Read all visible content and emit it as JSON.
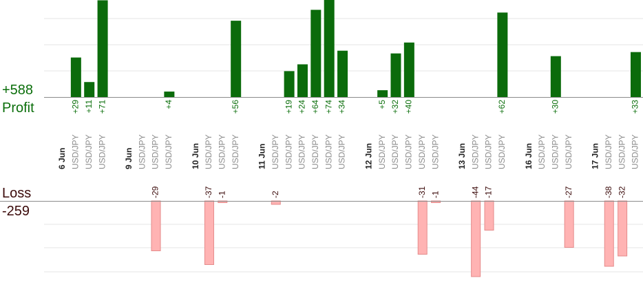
{
  "summary": {
    "profit_total": "+588",
    "profit_label": "Profit",
    "loss_label": "Loss",
    "loss_total": "-259"
  },
  "colors": {
    "profit_bar": "#0b6b0b",
    "profit_text": "#0a6e0a",
    "loss_bar": "#ffb3b3",
    "loss_bar_edge": "#e58a8a",
    "loss_text": "#3b0a0a",
    "grid": "#e6e6e6",
    "axis": "#8a8a8a",
    "date_text": "#222222",
    "symbol_text": "#8c8c8c"
  },
  "chart_data": {
    "type": "bar",
    "profit_ylim": [
      0,
      75
    ],
    "loss_ylim": [
      0,
      45
    ],
    "slots": [
      {
        "kind": "date",
        "text": "6 Jun"
      },
      {
        "kind": "trade",
        "symbol": "USD/JPY",
        "value": 29
      },
      {
        "kind": "trade",
        "symbol": "USD/JPY",
        "value": 11
      },
      {
        "kind": "trade",
        "symbol": "USD/JPY",
        "value": 71
      },
      {
        "kind": "gap"
      },
      {
        "kind": "date",
        "text": "9 Jun"
      },
      {
        "kind": "trade",
        "symbol": "USD/JPY",
        "value": null
      },
      {
        "kind": "trade",
        "symbol": "USD/JPY",
        "value": -29
      },
      {
        "kind": "trade",
        "symbol": "USD/JPY",
        "value": 4
      },
      {
        "kind": "gap"
      },
      {
        "kind": "date",
        "text": "10 Jun"
      },
      {
        "kind": "trade",
        "symbol": "USD/JPY",
        "value": -37
      },
      {
        "kind": "trade",
        "symbol": "USD/JPY",
        "value": -1
      },
      {
        "kind": "trade",
        "symbol": "USD/JPY",
        "value": 56
      },
      {
        "kind": "gap"
      },
      {
        "kind": "date",
        "text": "11 Jun"
      },
      {
        "kind": "trade",
        "symbol": "USD/JPY",
        "value": -2
      },
      {
        "kind": "trade",
        "symbol": "USD/JPY",
        "value": 19
      },
      {
        "kind": "trade",
        "symbol": "USD/JPY",
        "value": 24
      },
      {
        "kind": "trade",
        "symbol": "USD/JPY",
        "value": 64
      },
      {
        "kind": "trade",
        "symbol": "USD/JPY",
        "value": 74
      },
      {
        "kind": "trade",
        "symbol": "USD/JPY",
        "value": 34
      },
      {
        "kind": "gap"
      },
      {
        "kind": "date",
        "text": "12 Jun"
      },
      {
        "kind": "trade",
        "symbol": "USD/JPY",
        "value": 5
      },
      {
        "kind": "trade",
        "symbol": "USD/JPY",
        "value": 32
      },
      {
        "kind": "trade",
        "symbol": "USD/JPY",
        "value": 40
      },
      {
        "kind": "trade",
        "symbol": "USD/JPY",
        "value": -31
      },
      {
        "kind": "trade",
        "symbol": "USD/JPY",
        "value": -1
      },
      {
        "kind": "gap"
      },
      {
        "kind": "date",
        "text": "13 Jun"
      },
      {
        "kind": "trade",
        "symbol": "USD/JPY",
        "value": -44
      },
      {
        "kind": "trade",
        "symbol": "USD/JPY",
        "value": -17
      },
      {
        "kind": "trade",
        "symbol": "USD/JPY",
        "value": 62
      },
      {
        "kind": "gap"
      },
      {
        "kind": "date",
        "text": "16 Jun"
      },
      {
        "kind": "trade",
        "symbol": "USD/JPY",
        "value": null
      },
      {
        "kind": "trade",
        "symbol": "USD/JPY",
        "value": 30
      },
      {
        "kind": "trade",
        "symbol": "USD/JPY",
        "value": -27
      },
      {
        "kind": "gap"
      },
      {
        "kind": "date",
        "text": "17 Jun"
      },
      {
        "kind": "trade",
        "symbol": "USD/JPY",
        "value": -38
      },
      {
        "kind": "trade",
        "symbol": "USD/JPY",
        "value": -32
      },
      {
        "kind": "trade",
        "symbol": "USD/JPY",
        "value": 33
      }
    ]
  }
}
